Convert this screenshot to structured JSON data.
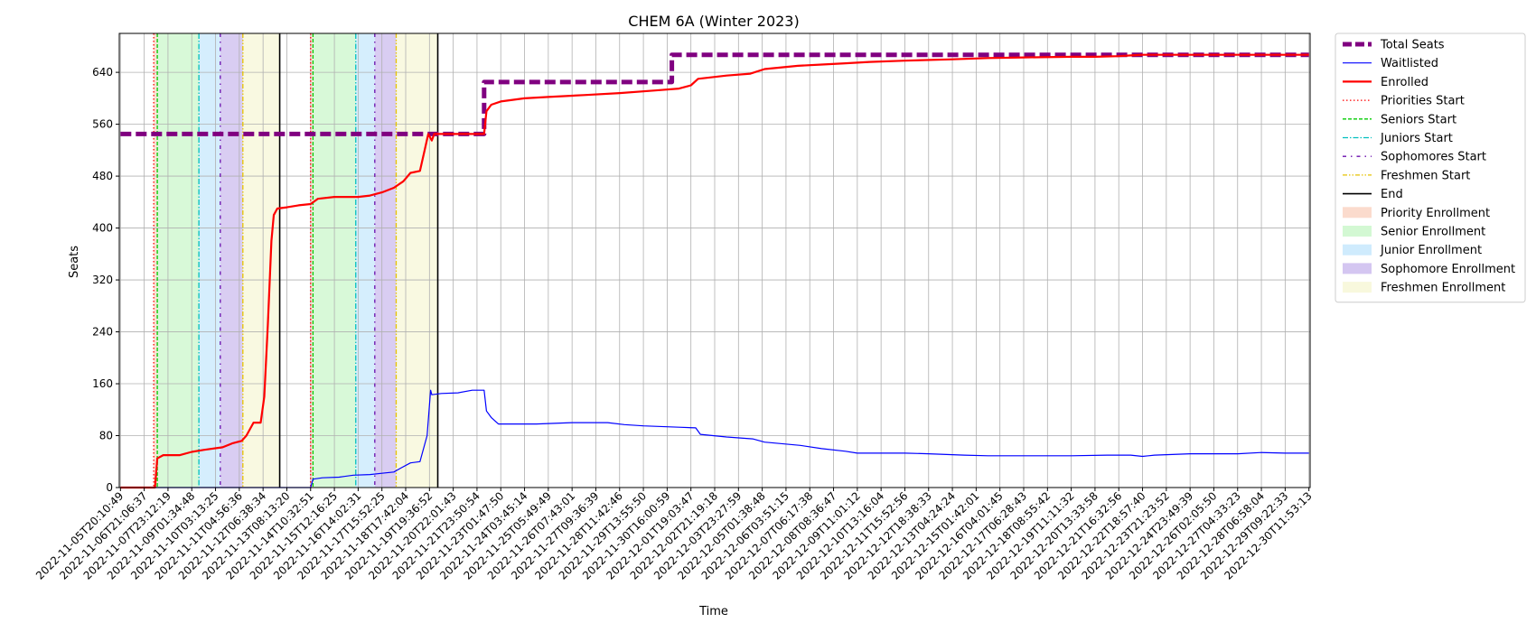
{
  "chart_data": {
    "type": "line",
    "title": "CHEM 6A (Winter 2023)",
    "xlabel": "Time",
    "ylabel": "Seats",
    "ylim": [
      0,
      700
    ],
    "yticks": [
      0,
      80,
      160,
      240,
      320,
      400,
      480,
      560,
      640
    ],
    "grid": true,
    "legend_placement": "outside-right",
    "xtick_labels": [
      "2022-11-05T20:10:49",
      "2022-11-06T21:06:37",
      "2022-11-07T23:12:19",
      "2022-11-09T01:34:48",
      "2022-11-10T03:13:25",
      "2022-11-11T04:56:36",
      "2022-11-12T06:38:34",
      "2022-11-13T08:13:20",
      "2022-11-14T10:32:51",
      "2022-11-15T12:16:25",
      "2022-11-16T14:02:31",
      "2022-11-17T15:52:25",
      "2022-11-18T17:42:04",
      "2022-11-19T19:36:52",
      "2022-11-20T22:01:43",
      "2022-11-21T23:50:54",
      "2022-11-23T01:47:50",
      "2022-11-24T03:45:14",
      "2022-11-25T05:49:49",
      "2022-11-26T07:43:01",
      "2022-11-27T09:36:39",
      "2022-11-28T11:42:46",
      "2022-11-29T13:55:50",
      "2022-11-30T16:00:59",
      "2022-12-01T19:03:47",
      "2022-12-02T21:19:18",
      "2022-12-03T23:27:59",
      "2022-12-05T01:38:48",
      "2022-12-06T03:51:15",
      "2022-12-07T06:17:38",
      "2022-12-08T08:36:47",
      "2022-12-09T11:01:12",
      "2022-12-10T13:16:04",
      "2022-12-11T15:52:56",
      "2022-12-12T18:38:33",
      "2022-12-13T04:24:24",
      "2022-12-15T01:42:01",
      "2022-12-16T04:01:45",
      "2022-12-17T06:28:43",
      "2022-12-18T08:55:42",
      "2022-12-19T11:11:32",
      "2022-12-20T13:33:58",
      "2022-12-21T16:32:56",
      "2022-12-22T18:57:40",
      "2022-12-23T21:23:52",
      "2022-12-24T23:49:39",
      "2022-12-26T02:05:50",
      "2022-12-27T04:33:23",
      "2022-12-28T06:58:04",
      "2022-12-29T09:22:33",
      "2022-12-30T11:53:13"
    ],
    "xrange_index": [
      -0.05,
      50.05
    ],
    "series": [
      {
        "name": "Total Seats",
        "color": "#800080",
        "style": "dashed-thick",
        "points": [
          [
            0,
            545
          ],
          [
            15.3,
            545
          ],
          [
            15.3,
            625
          ],
          [
            23.2,
            625
          ],
          [
            23.2,
            667
          ],
          [
            50,
            667
          ]
        ]
      },
      {
        "name": "Waitlisted",
        "color": "#0000ff",
        "style": "solid-thin",
        "points": [
          [
            0,
            0
          ],
          [
            8,
            0
          ],
          [
            8.1,
            13
          ],
          [
            8.5,
            15
          ],
          [
            9.2,
            16
          ],
          [
            9.8,
            19
          ],
          [
            10.5,
            20
          ],
          [
            11,
            22
          ],
          [
            11.5,
            24
          ],
          [
            11.8,
            30
          ],
          [
            12.2,
            38
          ],
          [
            12.6,
            40
          ],
          [
            12.9,
            80
          ],
          [
            13.05,
            150
          ],
          [
            13.1,
            143
          ],
          [
            13.5,
            145
          ],
          [
            14.2,
            146
          ],
          [
            14.8,
            150
          ],
          [
            15.3,
            150
          ],
          [
            15.4,
            118
          ],
          [
            15.6,
            108
          ],
          [
            15.9,
            98
          ],
          [
            17.5,
            98
          ],
          [
            19,
            100
          ],
          [
            20.5,
            100
          ],
          [
            21.2,
            97
          ],
          [
            22,
            95
          ],
          [
            23.5,
            93
          ],
          [
            24.2,
            92
          ],
          [
            24.4,
            82
          ],
          [
            25.5,
            78
          ],
          [
            26.6,
            75
          ],
          [
            27.1,
            70
          ],
          [
            28.6,
            65
          ],
          [
            29.5,
            60
          ],
          [
            30.5,
            56
          ],
          [
            31,
            53
          ],
          [
            33,
            53
          ],
          [
            34,
            52
          ],
          [
            35.5,
            50
          ],
          [
            36.5,
            49
          ],
          [
            38,
            49
          ],
          [
            40,
            49
          ],
          [
            41.5,
            50
          ],
          [
            42.5,
            50
          ],
          [
            43,
            48
          ],
          [
            43.5,
            50
          ],
          [
            45,
            52
          ],
          [
            47,
            52
          ],
          [
            48,
            54
          ],
          [
            49,
            53
          ],
          [
            50,
            53
          ]
        ]
      },
      {
        "name": "Enrolled",
        "color": "#ff0000",
        "style": "solid",
        "points": [
          [
            0,
            0
          ],
          [
            1.45,
            0
          ],
          [
            1.55,
            45
          ],
          [
            1.8,
            50
          ],
          [
            2.5,
            50
          ],
          [
            3,
            55
          ],
          [
            3.5,
            58
          ],
          [
            4.3,
            62
          ],
          [
            4.7,
            68
          ],
          [
            5.1,
            72
          ],
          [
            5.3,
            80
          ],
          [
            5.6,
            100
          ],
          [
            5.9,
            100
          ],
          [
            6.05,
            140
          ],
          [
            6.2,
            250
          ],
          [
            6.35,
            380
          ],
          [
            6.45,
            420
          ],
          [
            6.6,
            430
          ],
          [
            7,
            432
          ],
          [
            7.5,
            435
          ],
          [
            8,
            437
          ],
          [
            8.3,
            445
          ],
          [
            9,
            448
          ],
          [
            10,
            448
          ],
          [
            10.5,
            450
          ],
          [
            11,
            455
          ],
          [
            11.5,
            462
          ],
          [
            11.9,
            472
          ],
          [
            12.2,
            485
          ],
          [
            12.6,
            488
          ],
          [
            12.8,
            520
          ],
          [
            12.95,
            545
          ],
          [
            13.1,
            535
          ],
          [
            13.2,
            545
          ],
          [
            15.3,
            545
          ],
          [
            15.4,
            580
          ],
          [
            15.6,
            590
          ],
          [
            16,
            595
          ],
          [
            17,
            600
          ],
          [
            18,
            602
          ],
          [
            19.5,
            605
          ],
          [
            21,
            608
          ],
          [
            22.5,
            612
          ],
          [
            23.5,
            615
          ],
          [
            24,
            620
          ],
          [
            24.3,
            630
          ],
          [
            25.5,
            635
          ],
          [
            26.5,
            638
          ],
          [
            27.1,
            645
          ],
          [
            28.5,
            650
          ],
          [
            29.5,
            652
          ],
          [
            30.5,
            654
          ],
          [
            31.5,
            656
          ],
          [
            33,
            658
          ],
          [
            35,
            660
          ],
          [
            36.5,
            662
          ],
          [
            38,
            663
          ],
          [
            40,
            664
          ],
          [
            41,
            664
          ],
          [
            42,
            665
          ],
          [
            42.5,
            666
          ],
          [
            43,
            667
          ],
          [
            50,
            667
          ]
        ]
      }
    ],
    "phase_lines": {
      "priorities_start": [
        1.4,
        8.0
      ],
      "seniors_start": [
        1.55,
        8.1
      ],
      "juniors_start": [
        3.3,
        9.9
      ],
      "sophomores_start": [
        4.2,
        10.7
      ],
      "freshmen_start": [
        5.15,
        11.6
      ],
      "end": [
        6.7,
        13.35
      ]
    },
    "phase_bands": [
      {
        "name": "Priority Enrollment",
        "color": "#f4a582",
        "ranges": [
          [
            1.4,
            1.55
          ],
          [
            8.0,
            8.1
          ]
        ]
      },
      {
        "name": "Senior Enrollment",
        "color": "#90ee90",
        "ranges": [
          [
            1.55,
            3.3
          ],
          [
            8.1,
            9.9
          ]
        ]
      },
      {
        "name": "Junior Enrollment",
        "color": "#87cefa",
        "ranges": [
          [
            3.3,
            4.2
          ],
          [
            9.9,
            10.7
          ]
        ]
      },
      {
        "name": "Sophomore Enrollment",
        "color": "#9370db",
        "ranges": [
          [
            4.2,
            5.15
          ],
          [
            10.7,
            11.6
          ]
        ]
      },
      {
        "name": "Freshmen Enrollment",
        "color": "#eeeeaa",
        "ranges": [
          [
            5.15,
            6.7
          ],
          [
            11.6,
            13.35
          ]
        ]
      }
    ],
    "legend": [
      {
        "label": "Total Seats",
        "kind": "line",
        "color": "#800080",
        "dash": "10,4",
        "width": 5
      },
      {
        "label": "Waitlisted",
        "kind": "line",
        "color": "#0000ff",
        "dash": "",
        "width": 1.2
      },
      {
        "label": "Enrolled",
        "kind": "line",
        "color": "#ff0000",
        "dash": "",
        "width": 2.2
      },
      {
        "label": "Priorities Start",
        "kind": "line",
        "color": "#ff0000",
        "dash": "1.5,2.5",
        "width": 1.3
      },
      {
        "label": "Seniors Start",
        "kind": "line",
        "color": "#00cc00",
        "dash": "4,2",
        "width": 1.3
      },
      {
        "label": "Juniors Start",
        "kind": "line",
        "color": "#00bfbf",
        "dash": "6,2,1.5,2",
        "width": 1.3
      },
      {
        "label": "Sophomores Start",
        "kind": "line",
        "color": "#6a0dad",
        "dash": "4,5,1.5,5",
        "width": 1.3
      },
      {
        "label": "Freshmen Start",
        "kind": "line",
        "color": "#e6c200",
        "dash": "5,2,1.5,2,1.5,2",
        "width": 1.3
      },
      {
        "label": "End",
        "kind": "line",
        "color": "#000000",
        "dash": "",
        "width": 1.6
      },
      {
        "label": "Priority Enrollment",
        "kind": "patch",
        "color": "#f4a582"
      },
      {
        "label": "Senior Enrollment",
        "kind": "patch",
        "color": "#90ee90"
      },
      {
        "label": "Junior Enrollment",
        "kind": "patch",
        "color": "#87cefa"
      },
      {
        "label": "Sophomore Enrollment",
        "kind": "patch",
        "color": "#9370db"
      },
      {
        "label": "Freshmen Enrollment",
        "kind": "patch",
        "color": "#eeeeaa"
      }
    ]
  }
}
